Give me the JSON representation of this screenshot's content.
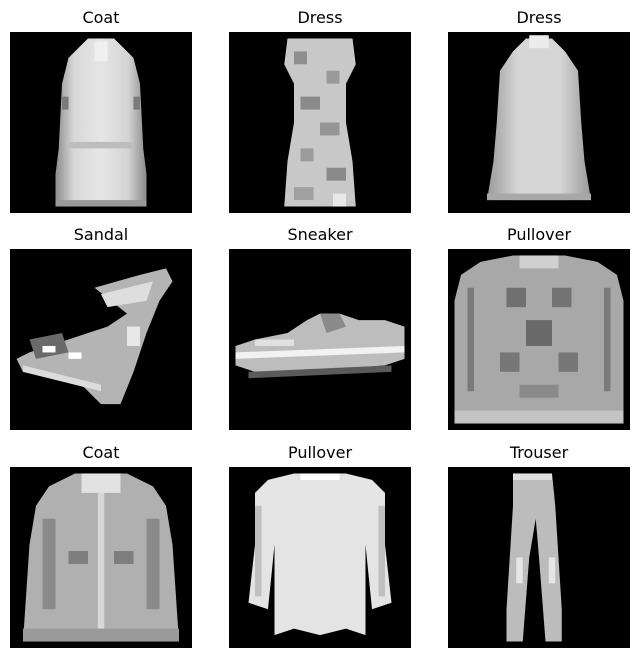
{
  "figure": {
    "items": [
      {
        "label": "Coat",
        "image": "grayscale-coat-thumbnail"
      },
      {
        "label": "Dress",
        "image": "grayscale-dress-thumbnail"
      },
      {
        "label": "Dress",
        "image": "grayscale-dress-thumbnail"
      },
      {
        "label": "Sandal",
        "image": "grayscale-sandal-thumbnail"
      },
      {
        "label": "Sneaker",
        "image": "grayscale-sneaker-thumbnail"
      },
      {
        "label": "Pullover",
        "image": "grayscale-pullover-thumbnail"
      },
      {
        "label": "Coat",
        "image": "grayscale-coat-thumbnail"
      },
      {
        "label": "Pullover",
        "image": "grayscale-pullover-thumbnail"
      },
      {
        "label": "Trouser",
        "image": "grayscale-trouser-thumbnail"
      }
    ]
  }
}
